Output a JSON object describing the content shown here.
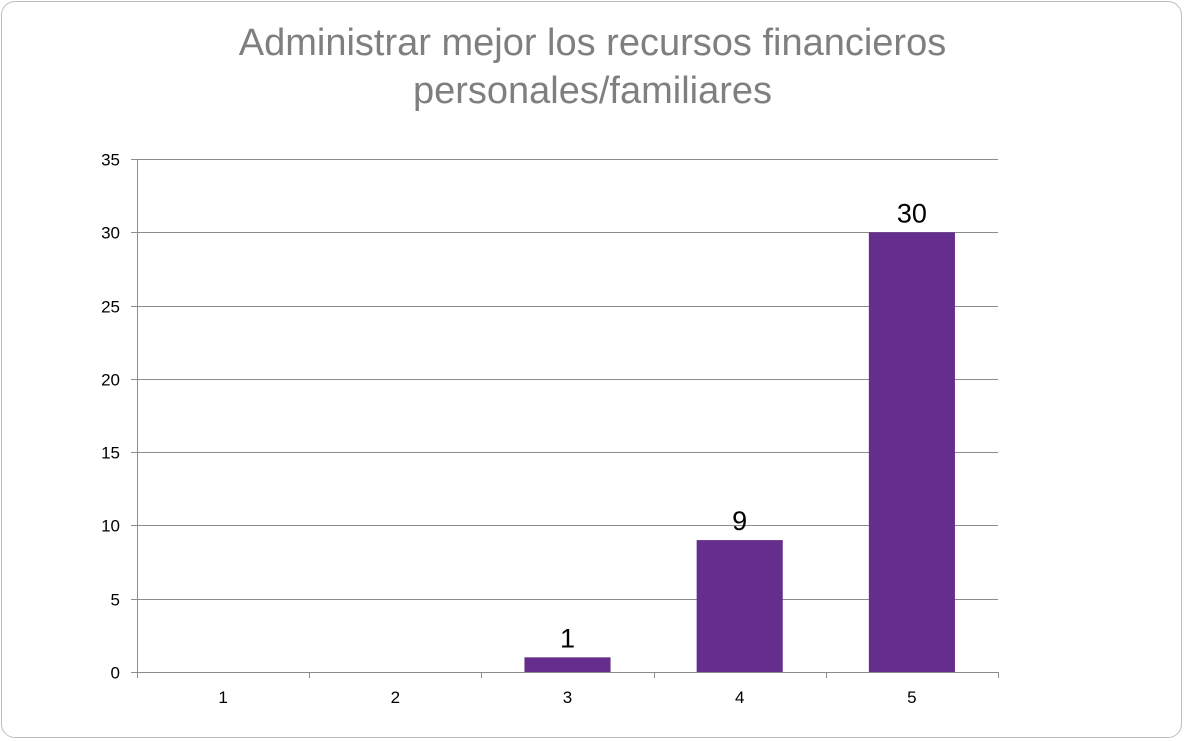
{
  "chart_data": {
    "type": "bar",
    "title_lines": [
      "Administrar mejor los recursos financieros",
      "personales/familiares"
    ],
    "categories": [
      "1",
      "2",
      "3",
      "4",
      "5"
    ],
    "values": [
      0,
      0,
      1,
      9,
      30
    ],
    "data_labels": [
      "",
      "",
      "1",
      "9",
      "30"
    ],
    "xlabel": "",
    "ylabel": "",
    "ylim": [
      0,
      35
    ],
    "yticks": [
      0,
      5,
      10,
      15,
      20,
      25,
      30,
      35
    ],
    "grid": true,
    "legend": "none",
    "bar_color": "#652d8c",
    "gridline_color": "#8c8c8c"
  }
}
